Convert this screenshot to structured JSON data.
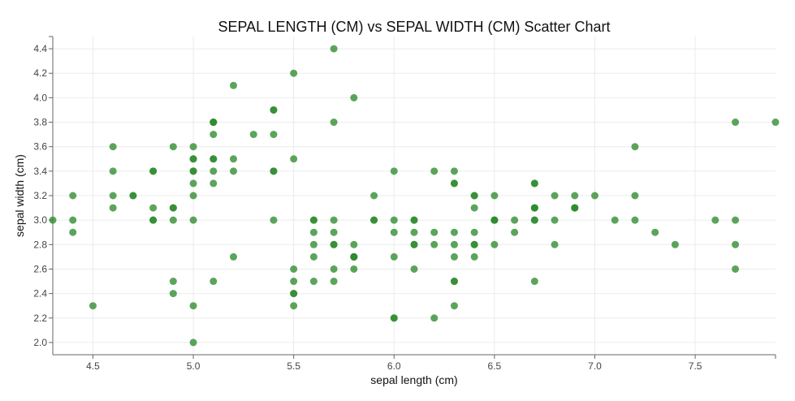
{
  "chart_data": {
    "type": "scatter",
    "title": "SEPAL LENGTH (CM) vs SEPAL WIDTH (CM) Scatter Chart",
    "xlabel": "sepal length (cm)",
    "ylabel": "sepal width (cm)",
    "xlim": [
      4.3,
      7.9
    ],
    "ylim": [
      1.9,
      4.5
    ],
    "grid": true,
    "x_ticks": [
      "4.5",
      "5.0",
      "5.5",
      "6.0",
      "6.5",
      "7.0",
      "7.5"
    ],
    "y_ticks": [
      "2.0",
      "2.2",
      "2.4",
      "2.6",
      "2.8",
      "3.0",
      "3.2",
      "3.4",
      "3.6",
      "3.8",
      "4.0",
      "4.2",
      "4.4"
    ],
    "series": [
      {
        "color": "#2e8b2e",
        "points": [
          [
            5.1,
            3.5
          ],
          [
            4.9,
            3.0
          ],
          [
            4.7,
            3.2
          ],
          [
            4.6,
            3.1
          ],
          [
            5.0,
            3.6
          ],
          [
            5.4,
            3.9
          ],
          [
            4.6,
            3.4
          ],
          [
            5.0,
            3.4
          ],
          [
            4.4,
            2.9
          ],
          [
            4.9,
            3.1
          ],
          [
            5.4,
            3.7
          ],
          [
            4.8,
            3.4
          ],
          [
            4.8,
            3.0
          ],
          [
            4.3,
            3.0
          ],
          [
            5.8,
            4.0
          ],
          [
            5.7,
            4.4
          ],
          [
            5.4,
            3.9
          ],
          [
            5.1,
            3.5
          ],
          [
            5.7,
            3.8
          ],
          [
            5.1,
            3.8
          ],
          [
            5.4,
            3.4
          ],
          [
            5.1,
            3.7
          ],
          [
            4.6,
            3.6
          ],
          [
            5.1,
            3.3
          ],
          [
            4.8,
            3.4
          ],
          [
            5.0,
            3.0
          ],
          [
            5.0,
            3.4
          ],
          [
            5.2,
            3.5
          ],
          [
            5.2,
            3.4
          ],
          [
            4.7,
            3.2
          ],
          [
            4.8,
            3.1
          ],
          [
            5.4,
            3.4
          ],
          [
            5.2,
            4.1
          ],
          [
            5.5,
            4.2
          ],
          [
            4.9,
            3.1
          ],
          [
            5.0,
            3.2
          ],
          [
            5.5,
            3.5
          ],
          [
            4.9,
            3.6
          ],
          [
            4.4,
            3.0
          ],
          [
            5.1,
            3.4
          ],
          [
            5.0,
            3.5
          ],
          [
            4.5,
            2.3
          ],
          [
            4.4,
            3.2
          ],
          [
            5.0,
            3.5
          ],
          [
            5.1,
            3.8
          ],
          [
            4.8,
            3.0
          ],
          [
            5.1,
            3.8
          ],
          [
            4.6,
            3.2
          ],
          [
            5.3,
            3.7
          ],
          [
            5.0,
            3.3
          ],
          [
            7.0,
            3.2
          ],
          [
            6.4,
            3.2
          ],
          [
            6.9,
            3.1
          ],
          [
            5.5,
            2.3
          ],
          [
            6.5,
            2.8
          ],
          [
            5.7,
            2.8
          ],
          [
            6.3,
            3.3
          ],
          [
            4.9,
            2.4
          ],
          [
            6.6,
            2.9
          ],
          [
            5.2,
            2.7
          ],
          [
            5.0,
            2.0
          ],
          [
            5.9,
            3.0
          ],
          [
            6.0,
            2.2
          ],
          [
            6.1,
            2.9
          ],
          [
            5.6,
            2.9
          ],
          [
            6.7,
            3.1
          ],
          [
            5.6,
            3.0
          ],
          [
            5.8,
            2.7
          ],
          [
            6.2,
            2.2
          ],
          [
            5.6,
            2.5
          ],
          [
            5.9,
            3.2
          ],
          [
            6.1,
            2.8
          ],
          [
            6.3,
            2.5
          ],
          [
            6.1,
            2.8
          ],
          [
            6.4,
            2.9
          ],
          [
            6.6,
            3.0
          ],
          [
            6.8,
            2.8
          ],
          [
            6.7,
            3.0
          ],
          [
            6.0,
            2.9
          ],
          [
            5.7,
            2.6
          ],
          [
            5.5,
            2.4
          ],
          [
            5.5,
            2.4
          ],
          [
            5.8,
            2.7
          ],
          [
            6.0,
            2.7
          ],
          [
            5.4,
            3.0
          ],
          [
            6.0,
            3.4
          ],
          [
            6.7,
            3.1
          ],
          [
            6.3,
            2.3
          ],
          [
            5.6,
            3.0
          ],
          [
            5.5,
            2.5
          ],
          [
            5.5,
            2.6
          ],
          [
            6.1,
            3.0
          ],
          [
            5.8,
            2.6
          ],
          [
            5.0,
            2.3
          ],
          [
            5.6,
            2.7
          ],
          [
            5.7,
            3.0
          ],
          [
            5.7,
            2.9
          ],
          [
            6.2,
            2.9
          ],
          [
            5.1,
            2.5
          ],
          [
            5.7,
            2.8
          ],
          [
            6.3,
            3.3
          ],
          [
            5.8,
            2.7
          ],
          [
            7.1,
            3.0
          ],
          [
            6.3,
            2.9
          ],
          [
            6.5,
            3.0
          ],
          [
            7.6,
            3.0
          ],
          [
            4.9,
            2.5
          ],
          [
            7.3,
            2.9
          ],
          [
            6.7,
            2.5
          ],
          [
            7.2,
            3.6
          ],
          [
            6.5,
            3.2
          ],
          [
            6.4,
            2.7
          ],
          [
            6.8,
            3.0
          ],
          [
            5.7,
            2.5
          ],
          [
            5.8,
            2.8
          ],
          [
            6.4,
            3.2
          ],
          [
            6.5,
            3.0
          ],
          [
            7.7,
            3.8
          ],
          [
            7.7,
            2.6
          ],
          [
            6.0,
            2.2
          ],
          [
            6.9,
            3.2
          ],
          [
            5.6,
            2.8
          ],
          [
            7.7,
            2.8
          ],
          [
            6.3,
            2.7
          ],
          [
            6.7,
            3.3
          ],
          [
            7.2,
            3.2
          ],
          [
            6.2,
            2.8
          ],
          [
            6.1,
            3.0
          ],
          [
            6.4,
            2.8
          ],
          [
            7.2,
            3.0
          ],
          [
            7.4,
            2.8
          ],
          [
            7.9,
            3.8
          ],
          [
            6.4,
            2.8
          ],
          [
            6.3,
            2.8
          ],
          [
            6.1,
            2.6
          ],
          [
            7.7,
            3.0
          ],
          [
            6.3,
            3.4
          ],
          [
            6.4,
            3.1
          ],
          [
            6.0,
            3.0
          ],
          [
            6.9,
            3.1
          ],
          [
            6.7,
            3.1
          ],
          [
            6.9,
            3.1
          ],
          [
            5.8,
            2.7
          ],
          [
            6.8,
            3.2
          ],
          [
            6.7,
            3.3
          ],
          [
            6.7,
            3.0
          ],
          [
            6.3,
            2.5
          ],
          [
            6.5,
            3.0
          ],
          [
            6.2,
            3.4
          ],
          [
            5.9,
            3.0
          ]
        ]
      }
    ]
  }
}
